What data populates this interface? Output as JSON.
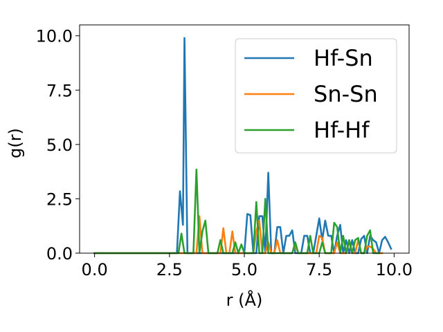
{
  "chart_data": {
    "type": "line",
    "xlabel": "r (Å)",
    "ylabel": "g(r)",
    "xlim": [
      -0.5,
      10.5
    ],
    "ylim": [
      0,
      10.5
    ],
    "xticks": [
      0.0,
      2.5,
      5.0,
      7.5,
      10.0
    ],
    "xtick_labels": [
      "0.0",
      "2.5",
      "5.0",
      "7.5",
      "10.0"
    ],
    "yticks": [
      0.0,
      2.5,
      5.0,
      7.5,
      10.0
    ],
    "ytick_labels": [
      "0.0",
      "2.5",
      "5.0",
      "7.5",
      "10.0"
    ],
    "grid": false,
    "legend_position": "upper right",
    "series": [
      {
        "name": "Hf-Sn",
        "color": "#1f77b4",
        "x": [
          0.0,
          2.75,
          2.85,
          2.95,
          3.0,
          3.1,
          5.0,
          5.1,
          5.2,
          5.3,
          5.4,
          5.5,
          5.6,
          5.7,
          5.8,
          5.9,
          6.0,
          6.1,
          6.2,
          6.3,
          6.4,
          6.5,
          6.6,
          6.7,
          6.8,
          6.9,
          7.0,
          7.1,
          7.2,
          7.3,
          7.4,
          7.5,
          7.6,
          7.7,
          7.8,
          7.9,
          8.0,
          8.1,
          8.2,
          8.3,
          8.4,
          8.5,
          8.6,
          8.7,
          8.8,
          8.9,
          9.0,
          9.1,
          9.2,
          9.3,
          9.4,
          9.5,
          9.6,
          9.7,
          9.8,
          9.9
        ],
        "y": [
          0.0,
          0.0,
          2.85,
          1.3,
          9.9,
          0.0,
          0.0,
          1.8,
          1.75,
          0.0,
          0.0,
          1.7,
          1.7,
          0.0,
          3.7,
          0.0,
          0.0,
          1.2,
          1.2,
          0.0,
          0.8,
          0.8,
          1.05,
          0.0,
          0.0,
          0.0,
          0.8,
          0.8,
          0.0,
          0.0,
          0.8,
          1.6,
          0.6,
          1.5,
          0.8,
          0.8,
          0.0,
          0.8,
          1.3,
          0.0,
          0.6,
          0.0,
          0.6,
          0.0,
          0.0,
          0.65,
          0.8,
          0.0,
          0.8,
          0.6,
          0.5,
          0.0,
          0.6,
          0.75,
          0.5,
          0.2
        ]
      },
      {
        "name": "Sn-Sn",
        "color": "#ff7f0e",
        "x": [
          0.0,
          3.3,
          3.4,
          3.5,
          3.6,
          3.7,
          4.0,
          4.1,
          4.2,
          4.3,
          4.4,
          4.5,
          4.6,
          4.7,
          4.8,
          4.9,
          5.0,
          5.1,
          5.2,
          5.3,
          5.4,
          5.5,
          5.6,
          5.7,
          5.8,
          5.9,
          6.0,
          6.1,
          6.2,
          6.3,
          6.4,
          6.5,
          6.6,
          6.7,
          6.8,
          6.9,
          7.0,
          7.1,
          7.2,
          7.3,
          7.4,
          7.5,
          7.6,
          7.7,
          7.8,
          7.9,
          8.0,
          8.1,
          8.2,
          8.3,
          8.4,
          8.5,
          8.6,
          8.7,
          8.8,
          8.9,
          9.0,
          9.1,
          9.2,
          9.3,
          9.4,
          9.5,
          9.6
        ],
        "y": [
          0.0,
          0.0,
          0.0,
          1.7,
          0.0,
          0.0,
          0.0,
          0.0,
          0.0,
          1.15,
          0.0,
          0.0,
          1.0,
          0.0,
          0.0,
          0.0,
          0.0,
          0.0,
          0.0,
          0.0,
          1.0,
          1.5,
          0.0,
          0.0,
          0.5,
          0.0,
          0.0,
          0.6,
          0.0,
          0.0,
          0.0,
          0.0,
          0.0,
          0.4,
          0.0,
          0.0,
          0.0,
          0.0,
          0.0,
          0.0,
          0.0,
          0.8,
          0.7,
          0.0,
          0.0,
          0.0,
          0.0,
          0.5,
          0.0,
          0.0,
          0.0,
          0.55,
          0.0,
          0.0,
          0.6,
          0.0,
          0.0,
          0.3,
          0.3,
          0.2,
          0.0,
          0.0,
          0.0
        ]
      },
      {
        "name": "Hf-Hf",
        "color": "#2ca02c",
        "x": [
          0.0,
          2.8,
          2.9,
          3.0,
          3.1,
          3.3,
          3.4,
          3.5,
          3.6,
          3.7,
          3.8,
          3.9,
          4.0,
          4.1,
          4.2,
          4.3,
          4.4,
          4.5,
          4.6,
          4.7,
          4.8,
          4.9,
          5.0,
          5.1,
          5.2,
          5.3,
          5.4,
          5.5,
          5.6,
          5.7,
          5.8,
          5.9,
          6.0,
          6.1,
          6.2,
          6.3,
          6.4,
          6.5,
          6.6,
          6.7,
          6.8,
          6.9,
          7.0,
          7.1,
          7.2,
          7.3,
          7.4,
          7.5,
          7.6,
          7.7,
          7.8,
          7.9,
          8.0,
          8.1,
          8.2,
          8.3,
          8.4,
          8.5,
          8.6,
          8.7,
          8.8,
          8.9,
          9.0,
          9.1,
          9.2,
          9.3,
          9.4,
          9.5
        ],
        "y": [
          0.0,
          0.0,
          0.9,
          0.0,
          0.0,
          0.0,
          3.85,
          0.0,
          1.0,
          1.5,
          0.0,
          0.0,
          0.0,
          0.0,
          0.6,
          0.0,
          0.0,
          0.0,
          0.0,
          0.5,
          0.0,
          0.4,
          0.0,
          0.0,
          0.0,
          0.0,
          2.35,
          0.0,
          0.0,
          2.5,
          0.0,
          0.0,
          0.0,
          0.0,
          0.0,
          0.0,
          0.0,
          0.0,
          0.0,
          0.5,
          0.0,
          0.0,
          0.0,
          0.0,
          0.8,
          0.0,
          0.0,
          0.0,
          0.5,
          0.0,
          0.0,
          0.0,
          1.4,
          1.2,
          0.0,
          0.8,
          0.0,
          0.6,
          0.0,
          0.6,
          0.7,
          0.0,
          0.0,
          0.8,
          1.05,
          0.0,
          0.0,
          0.0
        ]
      }
    ]
  }
}
